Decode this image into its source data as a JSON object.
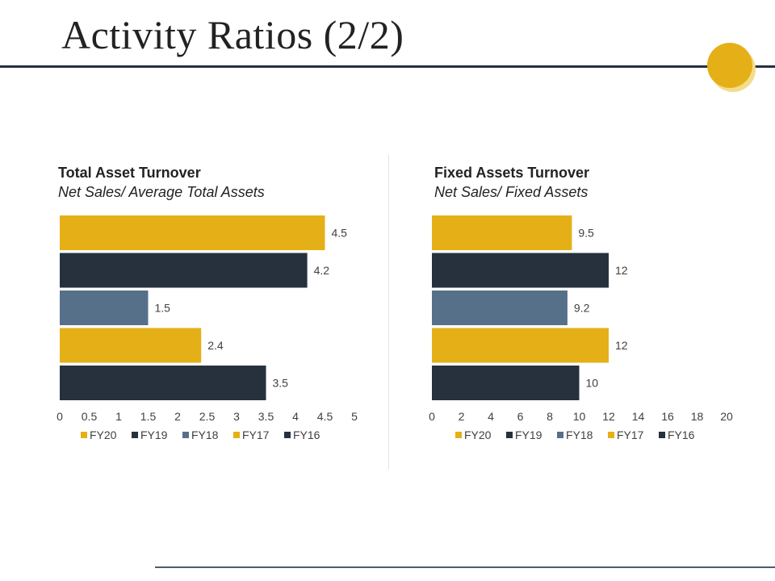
{
  "slide": {
    "title": "Activity Ratios (2/2)"
  },
  "colors": {
    "accent": "#e5b017",
    "dark": "#26313d",
    "slate": "#577089",
    "rule": "#26313d"
  },
  "chart_data": [
    {
      "type": "bar",
      "orientation": "horizontal",
      "title": "Total Asset Turnover",
      "subtitle": "Net Sales/ Average Total Assets",
      "categories": [
        "FY20",
        "FY19",
        "FY18",
        "FY17",
        "FY16"
      ],
      "values": [
        4.5,
        4.2,
        1.5,
        2.4,
        3.5
      ],
      "value_labels": [
        "4.5",
        "4.2",
        "1.5",
        "2.4",
        "3.5"
      ],
      "bar_colors": [
        "#e5b017",
        "#26313d",
        "#577089",
        "#e5b017",
        "#26313d"
      ],
      "xlim": [
        0,
        5
      ],
      "xticks": [
        "0",
        "0.5",
        "1",
        "1.5",
        "2",
        "2.5",
        "3",
        "3.5",
        "4",
        "4.5",
        "5"
      ],
      "legend": [
        "FY20",
        "FY19",
        "FY18",
        "FY17",
        "FY16"
      ],
      "legend_position": "bottom",
      "grid": false
    },
    {
      "type": "bar",
      "orientation": "horizontal",
      "title": "Fixed Assets Turnover",
      "subtitle": "Net Sales/ Fixed Assets",
      "categories": [
        "FY20",
        "FY19",
        "FY18",
        "FY17",
        "FY16"
      ],
      "values": [
        9.5,
        12,
        9.2,
        12,
        10
      ],
      "value_labels": [
        "9.5",
        "12",
        "9.2",
        "12",
        "10"
      ],
      "bar_colors": [
        "#e5b017",
        "#26313d",
        "#577089",
        "#e5b017",
        "#26313d"
      ],
      "xlim": [
        0,
        20
      ],
      "xticks": [
        "0",
        "2",
        "4",
        "6",
        "8",
        "10",
        "12",
        "14",
        "16",
        "18",
        "20"
      ],
      "legend": [
        "FY20",
        "FY19",
        "FY18",
        "FY17",
        "FY16"
      ],
      "legend_position": "bottom",
      "grid": false
    }
  ]
}
